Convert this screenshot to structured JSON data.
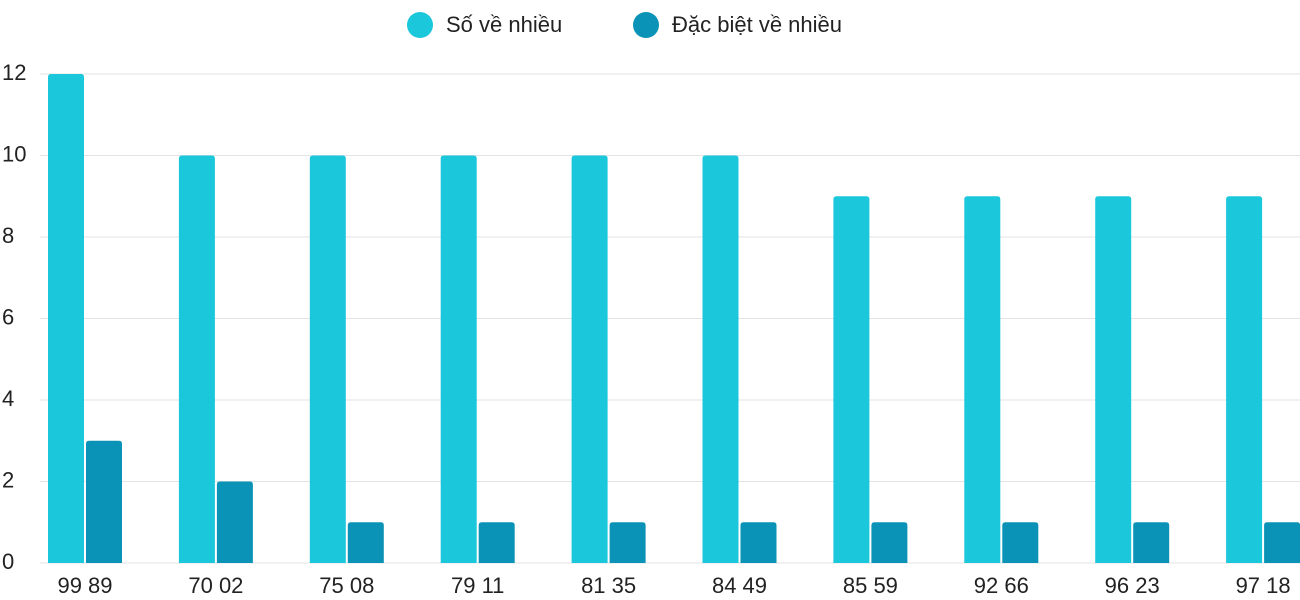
{
  "chart_data": {
    "type": "bar",
    "categories": [
      "99 89",
      "70 02",
      "75 08",
      "79 11",
      "81 35",
      "84 49",
      "85 59",
      "92 66",
      "96 23",
      "97 18"
    ],
    "series": [
      {
        "name": "Số về nhiều",
        "color": "#1bc7db",
        "values": [
          12,
          10,
          10,
          10,
          10,
          10,
          9,
          9,
          9,
          9
        ]
      },
      {
        "name": "Đặc biệt về nhiều",
        "color": "#0a93b6",
        "values": [
          3,
          2,
          1,
          1,
          1,
          1,
          1,
          1,
          1,
          1
        ]
      }
    ],
    "ylim": [
      0,
      12
    ],
    "yticks": [
      0,
      2,
      4,
      6,
      8,
      10,
      12
    ],
    "grid": true,
    "legend": "top"
  }
}
